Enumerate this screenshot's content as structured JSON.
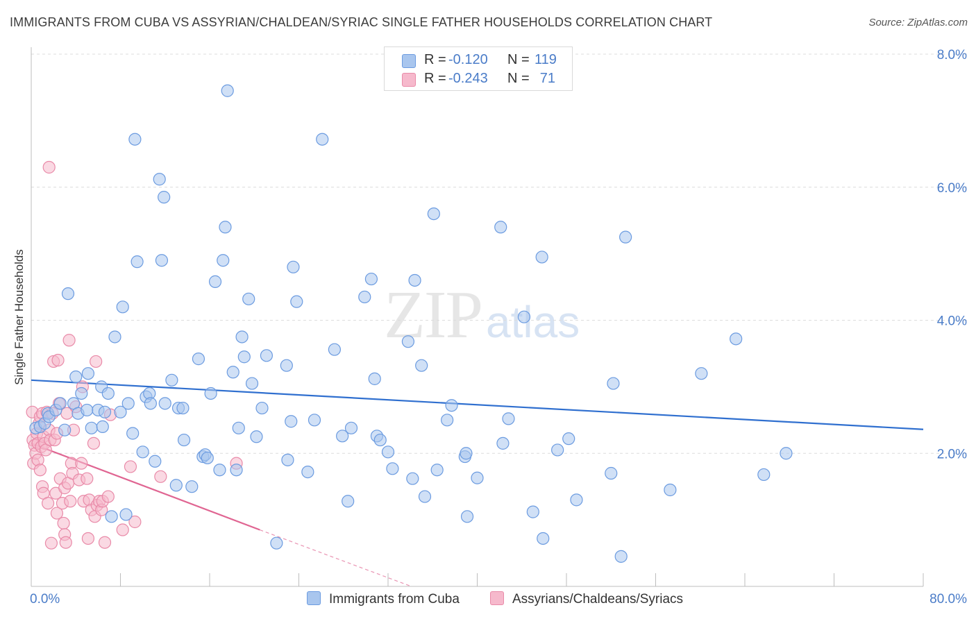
{
  "header": {
    "title": "IMMIGRANTS FROM CUBA VS ASSYRIAN/CHALDEAN/SYRIAC SINGLE FATHER HOUSEHOLDS CORRELATION CHART",
    "source": "Source: ZipAtlas.com"
  },
  "watermark": {
    "zip": "ZIP",
    "atlas": "atlas"
  },
  "legend": {
    "rows": [
      {
        "r_label": "R =",
        "r_value": "-0.120",
        "n_label": "N =",
        "n_value": "119"
      },
      {
        "r_label": "R =",
        "r_value": "-0.243",
        "n_label": "N =",
        "n_value": "71"
      }
    ]
  },
  "bottom_legend": {
    "series1": "Immigrants from Cuba",
    "series2": "Assyrians/Chaldeans/Syriacs"
  },
  "colors": {
    "series1_fill": "#a9c6ee",
    "series1_stroke": "#6b9be0",
    "series1_line": "#2f6fcf",
    "series2_fill": "#f6b9cc",
    "series2_stroke": "#e98aa8",
    "series2_line": "#e06592",
    "grid": "#dcdcdc",
    "tick_text": "#4a7cc8"
  },
  "chart_data": {
    "type": "scatter",
    "title": "IMMIGRANTS FROM CUBA VS ASSYRIAN/CHALDEAN/SYRIAC SINGLE FATHER HOUSEHOLDS CORRELATION CHART",
    "xlabel": "",
    "ylabel": "Single Father Households",
    "xlim": [
      0,
      80
    ],
    "ylim": [
      0,
      8
    ],
    "x_tick_labels": [
      "0.0%",
      "80.0%"
    ],
    "y_ticks": [
      2,
      4,
      6,
      8
    ],
    "y_tick_labels": [
      "2.0%",
      "4.0%",
      "6.0%",
      "8.0%"
    ],
    "grid": true,
    "series": [
      {
        "name": "Immigrants from Cuba",
        "stats": {
          "R": -0.12,
          "N": 119
        },
        "trend": {
          "x": [
            0,
            80
          ],
          "y": [
            3.1,
            2.36
          ]
        },
        "points": [
          [
            0.4,
            2.38
          ],
          [
            0.8,
            2.4
          ],
          [
            1.2,
            2.45
          ],
          [
            1.5,
            2.6
          ],
          [
            1.6,
            2.55
          ],
          [
            2.2,
            2.65
          ],
          [
            2.6,
            2.75
          ],
          [
            3.0,
            2.35
          ],
          [
            3.3,
            4.4
          ],
          [
            3.8,
            2.75
          ],
          [
            4.0,
            3.15
          ],
          [
            4.2,
            2.6
          ],
          [
            4.5,
            2.9
          ],
          [
            5.0,
            2.65
          ],
          [
            5.1,
            3.2
          ],
          [
            5.4,
            2.38
          ],
          [
            6.0,
            2.65
          ],
          [
            6.4,
            2.4
          ],
          [
            6.3,
            3.0
          ],
          [
            6.6,
            2.62
          ],
          [
            6.9,
            2.9
          ],
          [
            7.2,
            1.05
          ],
          [
            7.5,
            3.75
          ],
          [
            8.0,
            2.62
          ],
          [
            8.2,
            4.2
          ],
          [
            8.5,
            1.08
          ],
          [
            8.7,
            2.75
          ],
          [
            9.1,
            2.3
          ],
          [
            9.3,
            6.72
          ],
          [
            9.5,
            4.88
          ],
          [
            10.0,
            2.02
          ],
          [
            10.3,
            2.85
          ],
          [
            10.6,
            2.9
          ],
          [
            10.7,
            2.75
          ],
          [
            11.1,
            1.88
          ],
          [
            11.5,
            6.12
          ],
          [
            11.7,
            4.9
          ],
          [
            12.0,
            2.75
          ],
          [
            11.9,
            5.85
          ],
          [
            12.6,
            3.1
          ],
          [
            13.0,
            1.52
          ],
          [
            13.2,
            2.68
          ],
          [
            13.6,
            2.68
          ],
          [
            13.7,
            2.2
          ],
          [
            14.4,
            1.5
          ],
          [
            15.0,
            3.42
          ],
          [
            15.4,
            1.95
          ],
          [
            15.6,
            1.98
          ],
          [
            15.8,
            1.93
          ],
          [
            16.1,
            2.9
          ],
          [
            16.5,
            4.58
          ],
          [
            16.9,
            1.75
          ],
          [
            17.2,
            4.9
          ],
          [
            17.4,
            5.4
          ],
          [
            17.6,
            7.45
          ],
          [
            18.1,
            3.22
          ],
          [
            18.4,
            1.75
          ],
          [
            18.6,
            2.38
          ],
          [
            18.9,
            3.75
          ],
          [
            19.1,
            3.45
          ],
          [
            19.5,
            4.32
          ],
          [
            19.8,
            3.05
          ],
          [
            20.2,
            2.25
          ],
          [
            20.7,
            2.68
          ],
          [
            21.1,
            3.47
          ],
          [
            22.0,
            0.65
          ],
          [
            22.9,
            3.32
          ],
          [
            23.0,
            1.9
          ],
          [
            23.3,
            2.48
          ],
          [
            23.5,
            4.8
          ],
          [
            23.8,
            4.28
          ],
          [
            24.8,
            1.72
          ],
          [
            25.4,
            2.5
          ],
          [
            26.1,
            6.72
          ],
          [
            27.2,
            3.56
          ],
          [
            27.9,
            2.26
          ],
          [
            28.4,
            1.28
          ],
          [
            28.7,
            2.38
          ],
          [
            29.9,
            4.35
          ],
          [
            30.5,
            4.62
          ],
          [
            30.8,
            3.12
          ],
          [
            31.0,
            2.26
          ],
          [
            31.3,
            2.2
          ],
          [
            32.0,
            2.02
          ],
          [
            32.4,
            1.77
          ],
          [
            33.8,
            3.68
          ],
          [
            34.2,
            1.62
          ],
          [
            34.4,
            4.6
          ],
          [
            35.0,
            3.32
          ],
          [
            35.3,
            1.35
          ],
          [
            36.1,
            5.6
          ],
          [
            36.4,
            1.75
          ],
          [
            37.3,
            2.5
          ],
          [
            37.7,
            2.72
          ],
          [
            38.9,
            1.95
          ],
          [
            39.0,
            2.0
          ],
          [
            39.1,
            1.05
          ],
          [
            40.0,
            1.63
          ],
          [
            42.1,
            5.4
          ],
          [
            42.3,
            2.15
          ],
          [
            42.8,
            2.52
          ],
          [
            44.2,
            4.05
          ],
          [
            45.0,
            1.12
          ],
          [
            45.8,
            4.95
          ],
          [
            45.9,
            0.72
          ],
          [
            47.2,
            2.05
          ],
          [
            48.2,
            2.22
          ],
          [
            48.9,
            1.3
          ],
          [
            52.0,
            1.7
          ],
          [
            52.2,
            3.05
          ],
          [
            52.9,
            0.45
          ],
          [
            53.3,
            5.25
          ],
          [
            57.3,
            1.45
          ],
          [
            60.1,
            3.2
          ],
          [
            63.2,
            3.72
          ],
          [
            65.7,
            1.68
          ],
          [
            67.7,
            2.0
          ]
        ]
      },
      {
        "name": "Assyrians/Chaldeans/Syriacs",
        "stats": {
          "R": -0.243,
          "N": 71
        },
        "trend": {
          "x": [
            0,
            20.5
          ],
          "y": [
            2.15,
            0.85
          ],
          "dashed_to": {
            "x": 40,
            "y": -0.37
          }
        },
        "points": [
          [
            0.1,
            2.62
          ],
          [
            0.15,
            2.2
          ],
          [
            0.2,
            1.85
          ],
          [
            0.3,
            2.12
          ],
          [
            0.4,
            2.0
          ],
          [
            0.5,
            2.3
          ],
          [
            0.6,
            2.15
          ],
          [
            0.6,
            1.9
          ],
          [
            0.7,
            2.45
          ],
          [
            0.8,
            2.55
          ],
          [
            0.8,
            1.75
          ],
          [
            0.9,
            2.1
          ],
          [
            1.0,
            2.6
          ],
          [
            1.0,
            1.5
          ],
          [
            1.1,
            2.25
          ],
          [
            1.1,
            1.4
          ],
          [
            1.2,
            2.15
          ],
          [
            1.3,
            2.05
          ],
          [
            1.4,
            2.62
          ],
          [
            1.5,
            1.25
          ],
          [
            1.6,
            2.35
          ],
          [
            1.6,
            6.3
          ],
          [
            1.7,
            2.2
          ],
          [
            1.8,
            0.65
          ],
          [
            1.9,
            2.6
          ],
          [
            2.0,
            3.38
          ],
          [
            2.1,
            2.2
          ],
          [
            2.2,
            1.4
          ],
          [
            2.3,
            2.3
          ],
          [
            2.3,
            1.1
          ],
          [
            2.4,
            3.4
          ],
          [
            2.5,
            2.75
          ],
          [
            2.6,
            1.62
          ],
          [
            2.8,
            1.25
          ],
          [
            2.9,
            0.95
          ],
          [
            3.0,
            0.78
          ],
          [
            3.0,
            1.48
          ],
          [
            3.1,
            0.66
          ],
          [
            3.2,
            2.6
          ],
          [
            3.3,
            1.55
          ],
          [
            3.4,
            3.7
          ],
          [
            3.5,
            1.28
          ],
          [
            3.6,
            1.85
          ],
          [
            3.7,
            1.7
          ],
          [
            3.8,
            2.35
          ],
          [
            4.0,
            2.7
          ],
          [
            4.3,
            1.6
          ],
          [
            4.5,
            1.85
          ],
          [
            4.6,
            3.0
          ],
          [
            4.7,
            1.28
          ],
          [
            5.0,
            1.62
          ],
          [
            5.1,
            0.72
          ],
          [
            5.2,
            1.3
          ],
          [
            5.4,
            1.15
          ],
          [
            5.6,
            2.15
          ],
          [
            5.7,
            1.05
          ],
          [
            5.8,
            3.38
          ],
          [
            5.9,
            1.22
          ],
          [
            6.1,
            1.28
          ],
          [
            6.3,
            1.15
          ],
          [
            6.4,
            1.28
          ],
          [
            6.6,
            0.66
          ],
          [
            6.9,
            1.35
          ],
          [
            7.1,
            2.58
          ],
          [
            8.2,
            0.85
          ],
          [
            8.9,
            1.8
          ],
          [
            9.3,
            0.97
          ],
          [
            11.6,
            1.65
          ],
          [
            18.4,
            1.85
          ]
        ]
      }
    ]
  }
}
